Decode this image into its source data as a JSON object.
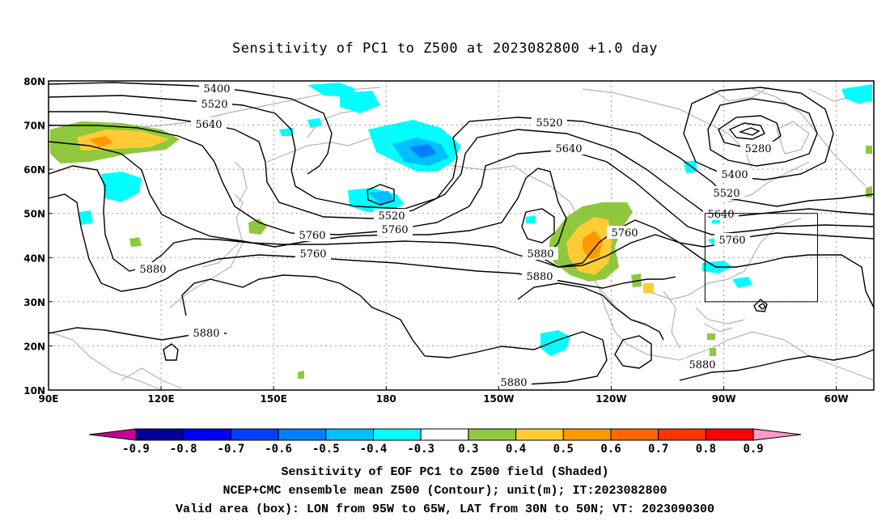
{
  "title": "Sensitivity of PC1 to Z500 at 2023082800 +1.0 day",
  "map": {
    "lon_range": [
      90,
      310
    ],
    "lat_range": [
      10,
      80
    ],
    "lat_labels": [
      "10N",
      "20N",
      "30N",
      "40N",
      "50N",
      "60N",
      "70N",
      "80N"
    ],
    "lon_labels": [
      "90E",
      "120E",
      "150E",
      "180",
      "150W",
      "120W",
      "90W",
      "60W"
    ],
    "valid_box": {
      "lon": [
        265,
        295
      ],
      "lat": [
        30,
        50
      ]
    },
    "contour_labels": [
      "5400",
      "5520",
      "5640",
      "5520",
      "5760",
      "5280",
      "5400",
      "5520",
      "5640",
      "5760",
      "5520",
      "5640",
      "5760",
      "5880",
      "5760",
      "5880",
      "5760",
      "5880",
      "5880",
      "5880",
      "5880"
    ],
    "colors": {
      "neg_cyan": "#00ffff",
      "neg_lightblue": "#00bfff",
      "neg_blue": "#0080ff",
      "pos_green": "#8fc83c",
      "pos_yellow": "#ffcc33",
      "pos_orange": "#ff9900",
      "coast": "#b4b4b4"
    }
  },
  "colorbar": {
    "labels": [
      "-0.9",
      "-0.8",
      "-0.7",
      "-0.6",
      "-0.5",
      "-0.4",
      "-0.3",
      "0.3",
      "0.4",
      "0.5",
      "0.6",
      "0.7",
      "0.8",
      "0.9"
    ],
    "colors": [
      "#000096",
      "#0000ff",
      "#0040ff",
      "#0080ff",
      "#00bfff",
      "#00ffff",
      "#ffffff",
      "#8fc83c",
      "#ffcc33",
      "#ff9900",
      "#ff6600",
      "#ff3300",
      "#ff0000"
    ],
    "low_arrow_color": "#c80096",
    "high_arrow_color": "#ff99cc"
  },
  "captions": {
    "line1": "Sensitivity of EOF PC1 to Z500 field (Shaded)",
    "line2": "NCEP+CMC ensemble mean Z500 (Contour); unit(m); IT:2023082800",
    "line3": "Valid area (box): LON from 95W to 65W, LAT from 30N to 50N; VT: 2023090300"
  }
}
